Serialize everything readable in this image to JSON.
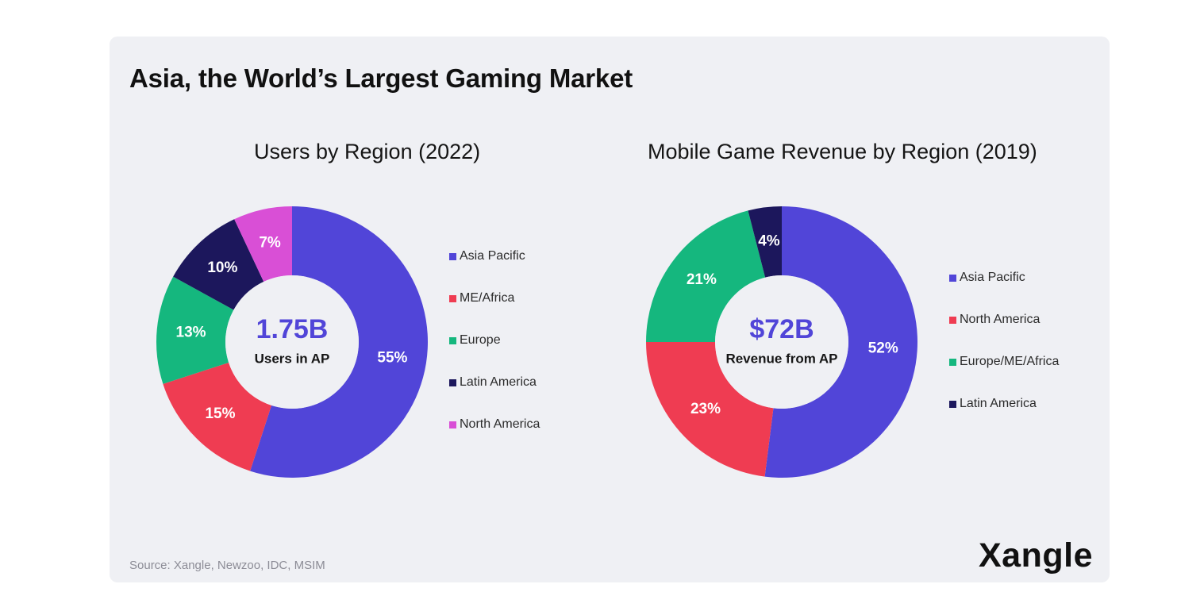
{
  "title": "Asia, the World’s Largest Gaming Market",
  "source": "Source: Xangle, Newzoo, IDC, MSIM",
  "logo": "Xangle",
  "chart_data": [
    {
      "type": "pie",
      "title": "Users by Region (2022)",
      "center_value": "1.75B",
      "center_label": "Users in AP",
      "categories": [
        "Asia Pacific",
        "ME/Africa",
        "Europe",
        "Latin America",
        "North America"
      ],
      "values": [
        55,
        15,
        13,
        10,
        7
      ],
      "value_labels": [
        "55%",
        "15%",
        "13%",
        "10%",
        "7%"
      ],
      "colors": [
        "#5145d8",
        "#ef3c52",
        "#15b77e",
        "#1c175c",
        "#d94fd6"
      ],
      "legend_placement": "right"
    },
    {
      "type": "pie",
      "title": "Mobile Game Revenue by Region (2019)",
      "center_value": "$72B",
      "center_label": "Revenue from AP",
      "categories": [
        "Asia Pacific",
        "North America",
        "Europe/ME/Africa",
        "Latin America"
      ],
      "values": [
        52,
        23,
        21,
        4
      ],
      "value_labels": [
        "52%",
        "23%",
        "21%",
        "4%"
      ],
      "colors": [
        "#5145d8",
        "#ef3c52",
        "#15b77e",
        "#1c175c"
      ],
      "legend_placement": "right"
    }
  ]
}
